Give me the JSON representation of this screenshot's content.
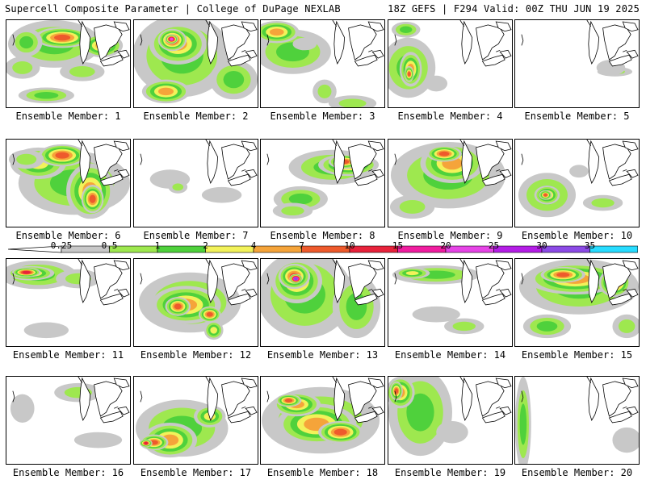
{
  "header": {
    "title": "Supercell Composite Parameter | College of DuPage NEXLAB",
    "run_info": "18Z GEFS | F294 Valid: 00Z THU JUN 19 2025"
  },
  "legend": {
    "labels": [
      "0.25",
      "0.5",
      "1",
      "2",
      "4",
      "7",
      "10",
      "15",
      "20",
      "25",
      "30",
      "35"
    ],
    "colors": [
      "#c8c8c8",
      "#9ee84f",
      "#4fd13c",
      "#f2f25a",
      "#f5a43a",
      "#ee5a2c",
      "#e8233c",
      "#f01ea0",
      "#e645e6",
      "#b41ee6",
      "#8c4be6",
      "#28dcff"
    ]
  },
  "members": [
    {
      "label": "Ensemble Member: 1",
      "blobs": [
        [
          60,
          30,
          58,
          30,
          2
        ],
        [
          120,
          32,
          26,
          15,
          4
        ],
        [
          70,
          22,
          35,
          13,
          5
        ],
        [
          25,
          28,
          20,
          18,
          2
        ],
        [
          20,
          60,
          22,
          14,
          1
        ],
        [
          95,
          65,
          28,
          12,
          1
        ],
        [
          50,
          95,
          35,
          10,
          2
        ]
      ]
    },
    {
      "label": "Ensemble Member: 2",
      "blobs": [
        [
          60,
          45,
          62,
          52,
          2
        ],
        [
          55,
          30,
          36,
          26,
          4
        ],
        [
          48,
          25,
          18,
          14,
          6
        ],
        [
          47,
          24,
          8,
          6,
          8
        ],
        [
          40,
          90,
          30,
          15,
          4
        ],
        [
          125,
          75,
          30,
          25,
          2
        ]
      ]
    },
    {
      "label": "Ensemble Member: 3",
      "blobs": [
        [
          40,
          40,
          48,
          28,
          2
        ],
        [
          20,
          15,
          28,
          14,
          4
        ],
        [
          80,
          90,
          15,
          15,
          1
        ],
        [
          115,
          105,
          30,
          10,
          1
        ],
        [
          55,
          30,
          15,
          8,
          0
        ]
      ]
    },
    {
      "label": "Ensemble Member: 4",
      "blobs": [
        [
          25,
          60,
          34,
          38,
          2
        ],
        [
          28,
          62,
          14,
          22,
          4
        ],
        [
          26,
          68,
          6,
          10,
          5
        ],
        [
          22,
          12,
          18,
          10,
          2
        ],
        [
          60,
          80,
          14,
          10,
          0
        ]
      ]
    },
    {
      "label": "Ensemble Member: 5",
      "blobs": [
        [
          125,
          65,
          22,
          6,
          1
        ],
        [
          120,
          60,
          18,
          10,
          0
        ]
      ]
    },
    {
      "label": "Ensemble Member: 6",
      "blobs": [
        [
          85,
          55,
          70,
          40,
          2
        ],
        [
          105,
          65,
          30,
          35,
          4
        ],
        [
          108,
          75,
          14,
          18,
          5
        ],
        [
          40,
          30,
          35,
          20,
          3
        ],
        [
          70,
          20,
          30,
          14,
          5
        ],
        [
          25,
          25,
          22,
          12,
          1
        ]
      ]
    },
    {
      "label": "Ensemble Member: 7",
      "blobs": [
        [
          45,
          50,
          25,
          12,
          0
        ],
        [
          55,
          60,
          12,
          8,
          1
        ],
        [
          110,
          70,
          25,
          10,
          0
        ]
      ]
    },
    {
      "label": "Ensemble Member: 8",
      "blobs": [
        [
          90,
          35,
          55,
          22,
          2
        ],
        [
          110,
          32,
          38,
          14,
          4
        ],
        [
          105,
          28,
          20,
          9,
          5
        ],
        [
          50,
          75,
          34,
          16,
          2
        ],
        [
          40,
          90,
          25,
          10,
          1
        ]
      ]
    },
    {
      "label": "Ensemble Member: 9",
      "blobs": [
        [
          75,
          45,
          72,
          42,
          2
        ],
        [
          80,
          30,
          40,
          25,
          4
        ],
        [
          70,
          18,
          22,
          10,
          5
        ],
        [
          30,
          85,
          28,
          15,
          1
        ]
      ]
    },
    {
      "label": "Ensemble Member: 10",
      "blobs": [
        [
          40,
          70,
          36,
          28,
          2
        ],
        [
          40,
          70,
          16,
          12,
          4
        ],
        [
          38,
          70,
          8,
          6,
          5
        ],
        [
          110,
          80,
          25,
          10,
          1
        ],
        [
          80,
          40,
          12,
          8,
          0
        ]
      ]
    },
    {
      "label": "Ensemble Member: 11",
      "blobs": [
        [
          40,
          20,
          48,
          18,
          2
        ],
        [
          30,
          18,
          30,
          9,
          4
        ],
        [
          25,
          17,
          18,
          6,
          6
        ],
        [
          90,
          25,
          28,
          12,
          1
        ],
        [
          50,
          90,
          28,
          10,
          0
        ]
      ]
    },
    {
      "label": "Ensemble Member: 12",
      "blobs": [
        [
          70,
          55,
          64,
          38,
          2
        ],
        [
          65,
          58,
          44,
          24,
          4
        ],
        [
          55,
          60,
          16,
          12,
          5
        ],
        [
          95,
          70,
          14,
          10,
          5
        ],
        [
          100,
          90,
          12,
          12,
          3
        ]
      ]
    },
    {
      "label": "Ensemble Member: 13",
      "blobs": [
        [
          55,
          45,
          60,
          55,
          2
        ],
        [
          45,
          28,
          32,
          28,
          4
        ],
        [
          42,
          22,
          20,
          16,
          5
        ],
        [
          44,
          25,
          8,
          6,
          10
        ],
        [
          120,
          60,
          30,
          40,
          2
        ]
      ]
    },
    {
      "label": "Ensemble Member: 14",
      "blobs": [
        [
          60,
          20,
          55,
          12,
          2
        ],
        [
          30,
          18,
          22,
          7,
          3
        ],
        [
          95,
          85,
          25,
          10,
          1
        ],
        [
          60,
          70,
          30,
          10,
          0
        ]
      ]
    },
    {
      "label": "Ensemble Member: 15",
      "blobs": [
        [
          80,
          35,
          75,
          35,
          2
        ],
        [
          75,
          25,
          60,
          20,
          4
        ],
        [
          60,
          20,
          28,
          10,
          5
        ],
        [
          125,
          30,
          20,
          18,
          5
        ],
        [
          40,
          85,
          30,
          15,
          2
        ],
        [
          140,
          85,
          18,
          15,
          1
        ]
      ]
    },
    {
      "label": "Ensemble Member: 16",
      "blobs": [
        [
          90,
          20,
          30,
          12,
          1
        ],
        [
          20,
          40,
          15,
          18,
          0
        ],
        [
          115,
          80,
          30,
          10,
          0
        ]
      ]
    },
    {
      "label": "Ensemble Member: 17",
      "blobs": [
        [
          60,
          65,
          58,
          36,
          2
        ],
        [
          45,
          80,
          34,
          22,
          4
        ],
        [
          25,
          83,
          18,
          10,
          5
        ],
        [
          15,
          84,
          8,
          5,
          6
        ],
        [
          95,
          50,
          20,
          14,
          3
        ]
      ]
    },
    {
      "label": "Ensemble Member: 18",
      "blobs": [
        [
          75,
          55,
          74,
          42,
          2
        ],
        [
          70,
          60,
          50,
          26,
          4
        ],
        [
          100,
          70,
          28,
          14,
          5
        ],
        [
          45,
          35,
          30,
          15,
          4
        ],
        [
          35,
          30,
          16,
          8,
          5
        ]
      ]
    },
    {
      "label": "Ensemble Member: 19",
      "blobs": [
        [
          40,
          45,
          40,
          55,
          2
        ],
        [
          15,
          20,
          18,
          20,
          4
        ],
        [
          10,
          18,
          8,
          12,
          5
        ],
        [
          80,
          70,
          20,
          14,
          0
        ]
      ]
    },
    {
      "label": "Ensemble Member: 20",
      "blobs": [
        [
          10,
          60,
          10,
          60,
          2
        ],
        [
          140,
          80,
          18,
          16,
          0
        ]
      ]
    }
  ]
}
